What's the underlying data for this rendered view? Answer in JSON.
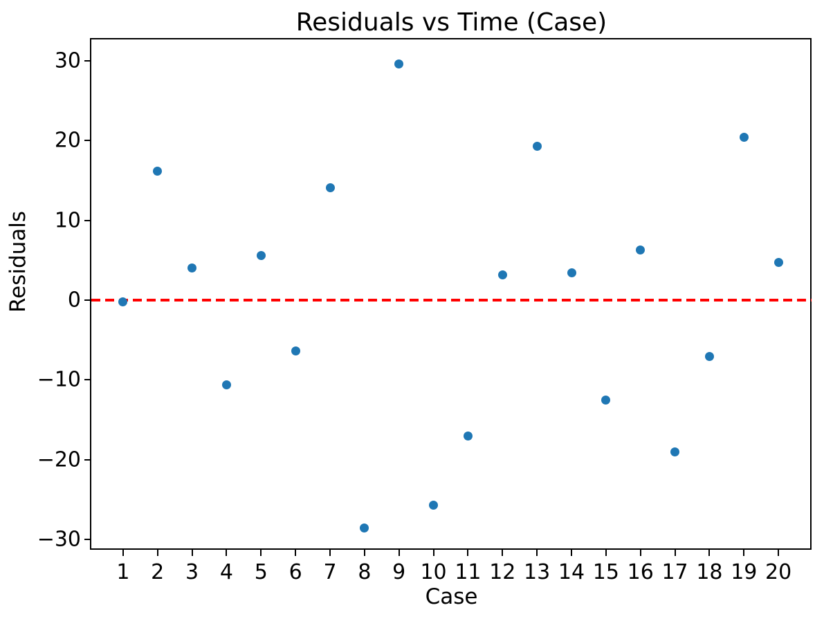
{
  "figure": {
    "title": "Residuals vs Time (Case)",
    "xlabel": "Case",
    "ylabel": "Residuals"
  },
  "chart_data": {
    "type": "scatter",
    "title": "Residuals vs Time (Case)",
    "xlabel": "Case",
    "ylabel": "Residuals",
    "x": [
      1,
      2,
      3,
      4,
      5,
      6,
      7,
      8,
      9,
      10,
      11,
      12,
      13,
      14,
      15,
      16,
      17,
      18,
      19,
      20
    ],
    "series": [
      {
        "name": "residuals",
        "values": [
          -0.2,
          16.2,
          4.0,
          -10.6,
          5.6,
          -6.4,
          14.1,
          -28.6,
          29.6,
          -25.7,
          -17.0,
          3.2,
          19.3,
          3.4,
          -12.5,
          6.3,
          -19.0,
          -7.1,
          20.4,
          4.7
        ]
      }
    ],
    "xticks": [
      1,
      2,
      3,
      4,
      5,
      6,
      7,
      8,
      9,
      10,
      11,
      12,
      13,
      14,
      15,
      16,
      17,
      18,
      19,
      20
    ],
    "yticks": [
      -30,
      -20,
      -10,
      0,
      10,
      20,
      30
    ],
    "xlim": [
      0.08,
      20.96
    ],
    "ylim": [
      -31.3,
      32.7
    ],
    "grid": false,
    "legend": "none",
    "marker_color": "#1f77b4",
    "zero_line": {
      "y": 0,
      "color": "#ff0000",
      "style": "dashed"
    },
    "axis_color": "#000000",
    "background_color": "#ffffff"
  }
}
